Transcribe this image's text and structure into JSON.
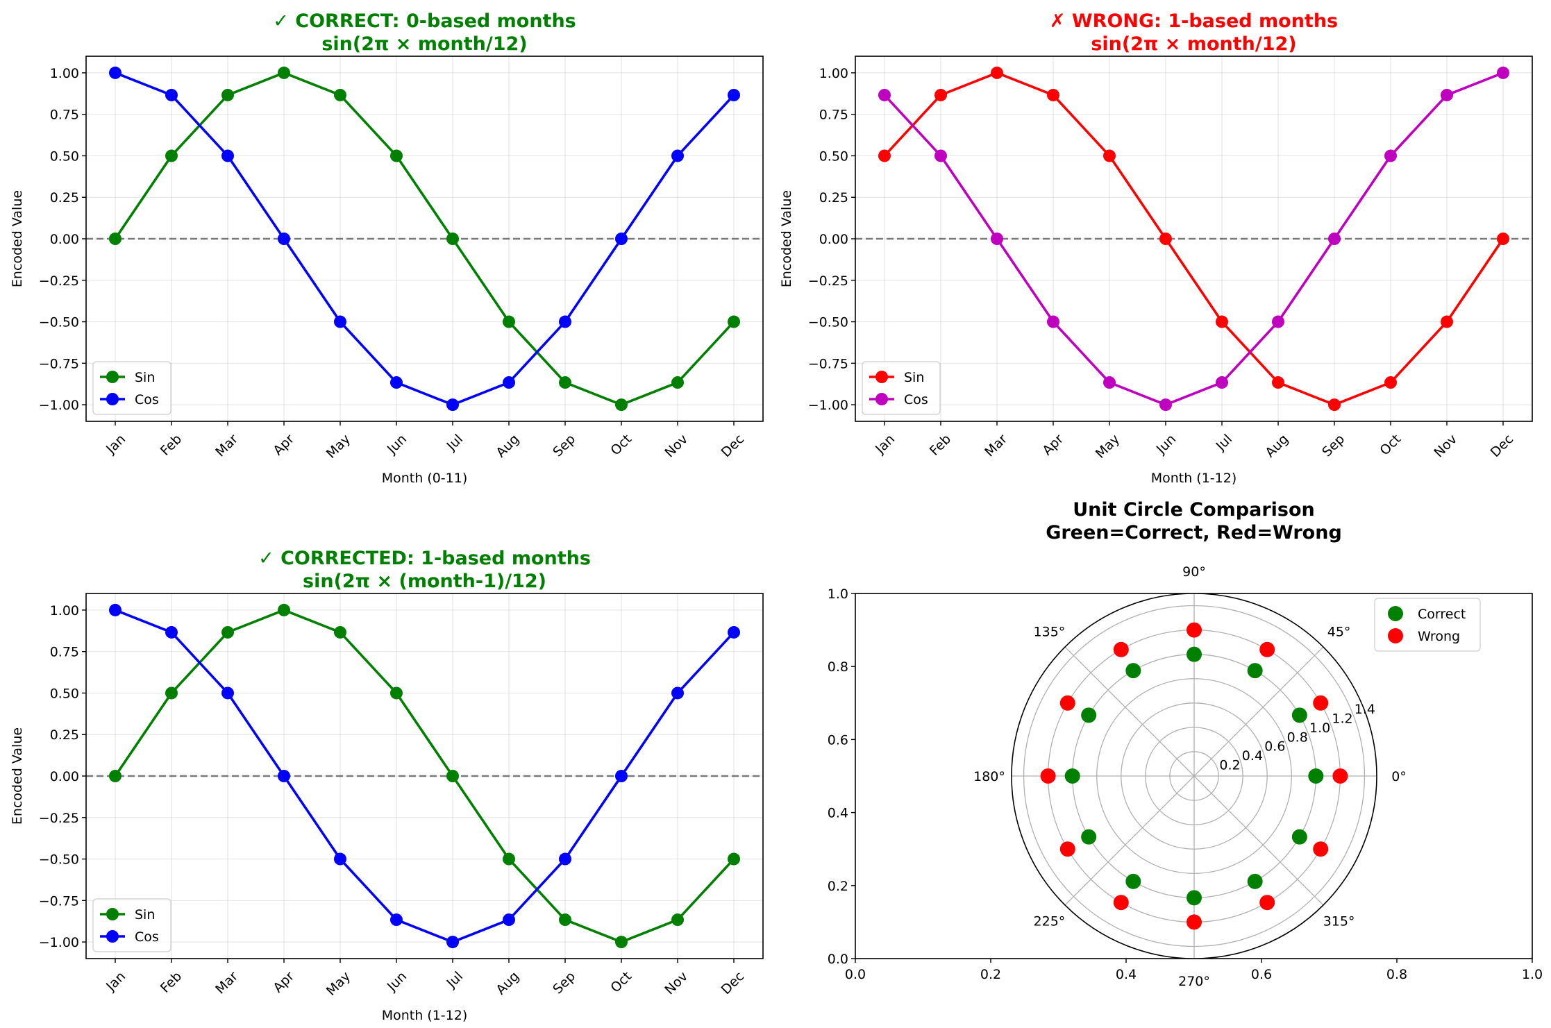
{
  "figure": {
    "background": "#ffffff"
  },
  "chart_data": [
    {
      "type": "line",
      "title": "✓ CORRECT: 0-based months\nsin(2π × month/12)",
      "title_color": "#008000",
      "xlabel": "Month (0-11)",
      "ylabel": "Encoded Value",
      "categories": [
        "Jan",
        "Feb",
        "Mar",
        "Apr",
        "May",
        "Jun",
        "Jul",
        "Aug",
        "Sep",
        "Oct",
        "Nov",
        "Dec"
      ],
      "ylim": [
        -1.1,
        1.1
      ],
      "yticks": [
        "1.00",
        "0.75",
        "0.50",
        "0.25",
        "0.00",
        "−0.25",
        "−0.50",
        "−0.75",
        "−1.00"
      ],
      "grid": true,
      "legend": "lower-left",
      "zero_line": true,
      "series": [
        {
          "name": "Sin",
          "color": "#008000",
          "values": [
            0,
            0.5,
            0.866,
            1,
            0.866,
            0.5,
            0,
            -0.5,
            -0.866,
            -1,
            -0.866,
            -0.5
          ]
        },
        {
          "name": "Cos",
          "color": "#0000ff",
          "values": [
            1,
            0.866,
            0.5,
            0,
            -0.5,
            -0.866,
            -1,
            -0.866,
            -0.5,
            0,
            0.5,
            0.866
          ]
        }
      ]
    },
    {
      "type": "line",
      "title": "✗ WRONG: 1-based months\nsin(2π × month/12)",
      "title_color": "#ff0000",
      "xlabel": "Month (1-12)",
      "ylabel": "Encoded Value",
      "categories": [
        "Jan",
        "Feb",
        "Mar",
        "Apr",
        "May",
        "Jun",
        "Jul",
        "Aug",
        "Sep",
        "Oct",
        "Nov",
        "Dec"
      ],
      "ylim": [
        -1.1,
        1.1
      ],
      "yticks": [
        "1.00",
        "0.75",
        "0.50",
        "0.25",
        "0.00",
        "−0.25",
        "−0.50",
        "−0.75",
        "−1.00"
      ],
      "grid": true,
      "legend": "lower-left",
      "zero_line": true,
      "series": [
        {
          "name": "Sin",
          "color": "#ff0000",
          "values": [
            0.5,
            0.866,
            1,
            0.866,
            0.5,
            0,
            -0.5,
            -0.866,
            -1,
            -0.866,
            -0.5,
            0
          ]
        },
        {
          "name": "Cos",
          "color": "#bf00bf",
          "values": [
            0.866,
            0.5,
            0,
            -0.5,
            -0.866,
            -1,
            -0.866,
            -0.5,
            0,
            0.5,
            0.866,
            1
          ]
        }
      ]
    },
    {
      "type": "line",
      "title": "✓ CORRECTED: 1-based months\nsin(2π × (month-1)/12)",
      "title_color": "#008000",
      "xlabel": "Month (1-12)",
      "ylabel": "Encoded Value",
      "categories": [
        "Jan",
        "Feb",
        "Mar",
        "Apr",
        "May",
        "Jun",
        "Jul",
        "Aug",
        "Sep",
        "Oct",
        "Nov",
        "Dec"
      ],
      "ylim": [
        -1.1,
        1.1
      ],
      "yticks": [
        "1.00",
        "0.75",
        "0.50",
        "0.25",
        "0.00",
        "−0.25",
        "−0.50",
        "−0.75",
        "−1.00"
      ],
      "grid": true,
      "legend": "lower-left",
      "zero_line": true,
      "series": [
        {
          "name": "Sin",
          "color": "#008000",
          "values": [
            0,
            0.5,
            0.866,
            1,
            0.866,
            0.5,
            0,
            -0.5,
            -0.866,
            -1,
            -0.866,
            -0.5
          ]
        },
        {
          "name": "Cos",
          "color": "#0000ff",
          "values": [
            1,
            0.866,
            0.5,
            0,
            -0.5,
            -0.866,
            -1,
            -0.866,
            -0.5,
            0,
            0.5,
            0.866
          ]
        }
      ]
    },
    {
      "type": "scatter",
      "subtype": "polar",
      "title": "Unit Circle Comparison\nGreen=Correct, Red=Wrong",
      "title_color": "#000000",
      "cartesian_xlim": [
        0,
        1
      ],
      "cartesian_ylim": [
        0,
        1
      ],
      "cartesian_xticks": [
        "0.0",
        "0.2",
        "0.4",
        "0.6",
        "0.8",
        "1.0"
      ],
      "cartesian_yticks": [
        "0.0",
        "0.2",
        "0.4",
        "0.6",
        "0.8",
        "1.0"
      ],
      "rmax": 1.5,
      "rticks": [
        "0.2",
        "0.4",
        "0.6",
        "0.8",
        "1.0",
        "1.2",
        "1.4"
      ],
      "rtick_values": [
        0.2,
        0.4,
        0.6,
        0.8,
        1.0,
        1.2,
        1.4
      ],
      "angle_labels": [
        "0°",
        "45°",
        "90°",
        "135°",
        "180°",
        "225°",
        "270°",
        "315°"
      ],
      "angle_values": [
        0,
        45,
        90,
        135,
        180,
        225,
        270,
        315
      ],
      "grid": true,
      "legend": "top-right",
      "series": [
        {
          "name": "Correct",
          "color": "#008000",
          "r": 1.0,
          "theta_deg": [
            0,
            30,
            60,
            90,
            120,
            150,
            180,
            210,
            240,
            270,
            300,
            330
          ]
        },
        {
          "name": "Wrong",
          "color": "#ff0000",
          "r": 1.2,
          "theta_deg": [
            0,
            30,
            60,
            90,
            120,
            150,
            180,
            210,
            240,
            270,
            300,
            330
          ]
        }
      ]
    }
  ]
}
